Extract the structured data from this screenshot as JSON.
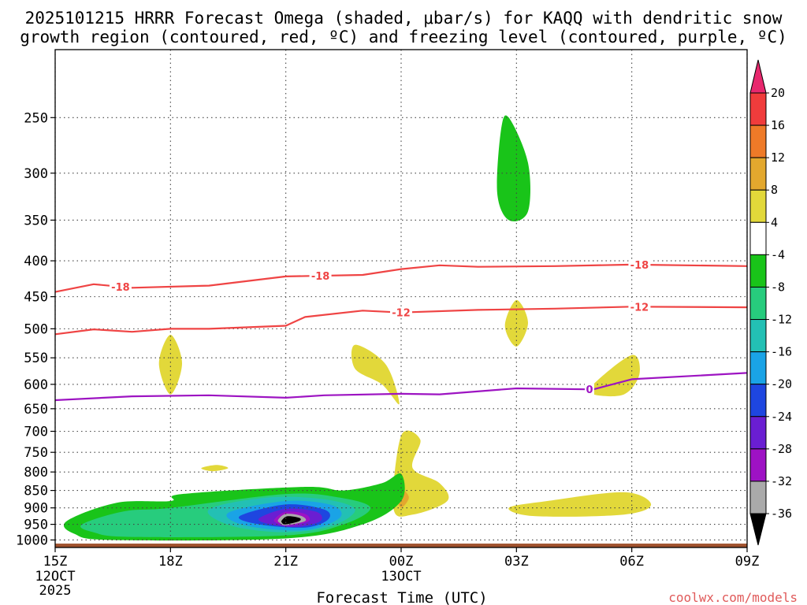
{
  "title_line1": "2025101215 HRRR Forecast Omega (shaded, μbar/s) for KAQQ with dendritic snow",
  "title_line2": "growth region (contoured, red, ºC) and freezing level (contoured, purple, ºC)",
  "credit": "coolwx.com/models",
  "chart_data": {
    "type": "cross-section",
    "title": "2025101215 HRRR Forecast Omega (shaded, μbar/s) for KAQQ with dendritic snow growth region (contoured, red, ºC) and freezing level (contoured, purple, ºC)",
    "xlabel": "Forecast Time (UTC)",
    "ylabel": "",
    "x_range_hours": [
      0,
      18
    ],
    "x_ticks": [
      {
        "hour": 0,
        "label": "15Z",
        "sub1": "12OCT",
        "sub2": "2025"
      },
      {
        "hour": 3,
        "label": "18Z",
        "sub1": "",
        "sub2": ""
      },
      {
        "hour": 6,
        "label": "21Z",
        "sub1": "",
        "sub2": ""
      },
      {
        "hour": 9,
        "label": "00Z",
        "sub1": "13OCT",
        "sub2": ""
      },
      {
        "hour": 12,
        "label": "03Z",
        "sub1": "",
        "sub2": ""
      },
      {
        "hour": 15,
        "label": "06Z",
        "sub1": "",
        "sub2": ""
      },
      {
        "hour": 18,
        "label": "09Z",
        "sub1": "",
        "sub2": ""
      }
    ],
    "y_ticks_hpa": [
      250,
      300,
      350,
      400,
      450,
      500,
      550,
      600,
      650,
      700,
      750,
      800,
      850,
      900,
      950,
      1000
    ],
    "y_range_hpa": [
      200,
      1025
    ],
    "ground_hpa": 1012,
    "colorbar": {
      "labels": [
        "20",
        "16",
        "12",
        "8",
        "4",
        "-4",
        "-8",
        "-12",
        "-16",
        "-20",
        "-24",
        "-28",
        "-32",
        "-36"
      ],
      "colors": [
        "#e8286e",
        "#f03c3c",
        "#ee7a28",
        "#e3a82e",
        "#e2d83a",
        "#ffffff",
        "#19c419",
        "#27cc7d",
        "#23c0b4",
        "#1aa3e6",
        "#1e46e0",
        "#6a1ed2",
        "#9e12c4",
        "#aaaaaa",
        "#000000"
      ]
    },
    "contours": [
      {
        "name": "dgz-minus18",
        "value": -18,
        "label": "-18",
        "color": "#ef4444",
        "points": [
          [
            0,
            443
          ],
          [
            1,
            432
          ],
          [
            2,
            437
          ],
          [
            4,
            434
          ],
          [
            6,
            421
          ],
          [
            8,
            419
          ],
          [
            9,
            411
          ],
          [
            10,
            406
          ],
          [
            11,
            408
          ],
          [
            13,
            407
          ],
          [
            15,
            405
          ],
          [
            18,
            407
          ]
        ],
        "label_hours": [
          1.7,
          6.9,
          15.2
        ]
      },
      {
        "name": "dgz-minus12",
        "value": -12,
        "label": "-12",
        "color": "#ef4444",
        "points": [
          [
            0,
            509
          ],
          [
            1,
            501
          ],
          [
            2,
            505
          ],
          [
            3,
            500
          ],
          [
            4,
            500
          ],
          [
            6,
            495
          ],
          [
            6.5,
            481
          ],
          [
            8,
            471
          ],
          [
            9,
            474
          ],
          [
            11,
            470
          ],
          [
            13,
            468
          ],
          [
            15,
            465
          ],
          [
            18,
            466
          ]
        ],
        "label_hours": [
          9.0,
          15.2
        ]
      },
      {
        "name": "freezing-level",
        "value": 0,
        "label": "0",
        "color": "#9d14c2",
        "points": [
          [
            0,
            632
          ],
          [
            2,
            624
          ],
          [
            4,
            622
          ],
          [
            6,
            627
          ],
          [
            7,
            622
          ],
          [
            9,
            619
          ],
          [
            10,
            620
          ],
          [
            12,
            608
          ],
          [
            14,
            610
          ],
          [
            15,
            590
          ],
          [
            18,
            578
          ]
        ],
        "label_hours": [
          13.9
        ]
      }
    ],
    "omega_blobs": [
      {
        "name": "yellow-18z-mid",
        "value": 4,
        "color": "#e2d83a",
        "points": [
          [
            3,
            510
          ],
          [
            3.3,
            560
          ],
          [
            3,
            620
          ],
          [
            2.7,
            560
          ]
        ]
      },
      {
        "name": "yellow-22z-mid",
        "value": 4,
        "color": "#e2d83a",
        "points": [
          [
            7.8,
            527
          ],
          [
            8.6,
            562
          ],
          [
            8.95,
            640
          ],
          [
            8.5,
            600
          ],
          [
            7.8,
            570
          ]
        ]
      },
      {
        "name": "yellow-03z-mid",
        "value": 4,
        "color": "#e2d83a",
        "points": [
          [
            12,
            455
          ],
          [
            12.3,
            490
          ],
          [
            12,
            530
          ],
          [
            11.7,
            495
          ]
        ]
      },
      {
        "name": "yellow-05z-mid",
        "value": 4,
        "color": "#e2d83a",
        "points": [
          [
            14,
            600
          ],
          [
            15,
            545
          ],
          [
            15.2,
            580
          ],
          [
            14.8,
            620
          ],
          [
            14,
            620
          ]
        ]
      },
      {
        "name": "yellow-19z-low",
        "value": 4,
        "color": "#e2d83a",
        "points": [
          [
            3.8,
            790
          ],
          [
            4.2,
            782
          ],
          [
            4.5,
            790
          ],
          [
            4.1,
            798
          ]
        ]
      },
      {
        "name": "yellow-00z-low",
        "value": 4,
        "color": "#e2d83a",
        "points": [
          [
            9.0,
            710
          ],
          [
            9.5,
            720
          ],
          [
            9.3,
            790
          ],
          [
            10.0,
            830
          ],
          [
            10.2,
            880
          ],
          [
            9.3,
            920
          ],
          [
            8.8,
            900
          ]
        ]
      },
      {
        "name": "orange-00z-low",
        "value": 8,
        "color": "#e3a82e",
        "points": [
          [
            9.0,
            845
          ],
          [
            9.2,
            870
          ],
          [
            9.0,
            900
          ],
          [
            8.9,
            870
          ]
        ]
      },
      {
        "name": "yellow-05z-low",
        "value": 4,
        "color": "#e2d83a",
        "points": [
          [
            11.8,
            900
          ],
          [
            12.8,
            880
          ],
          [
            14.8,
            855
          ],
          [
            15.5,
            890
          ],
          [
            14.8,
            920
          ],
          [
            12.5,
            925
          ]
        ]
      },
      {
        "name": "green-02z-upper",
        "value": -4,
        "color": "#19c419",
        "points": [
          [
            11.8,
            250
          ],
          [
            12.3,
            290
          ],
          [
            12.3,
            340
          ],
          [
            11.8,
            350
          ],
          [
            11.5,
            320
          ],
          [
            11.6,
            260
          ]
        ]
      },
      {
        "name": "low-level-omega-minus4",
        "value": -4,
        "color": "#19c419",
        "points": [
          [
            0.3,
            940
          ],
          [
            1.6,
            885
          ],
          [
            3.0,
            880
          ],
          [
            3.3,
            860
          ],
          [
            6.5,
            840
          ],
          [
            7.5,
            850
          ],
          [
            8.5,
            830
          ],
          [
            9.0,
            805
          ],
          [
            9.0,
            880
          ],
          [
            8.0,
            950
          ],
          [
            6.0,
            995
          ],
          [
            1.5,
            1000
          ],
          [
            0.5,
            980
          ]
        ]
      },
      {
        "name": "low-level-omega-minus8",
        "value": -8,
        "color": "#27cc7d",
        "points": [
          [
            0.7,
            950
          ],
          [
            1.8,
            910
          ],
          [
            3.0,
            900
          ],
          [
            6.0,
            860
          ],
          [
            7.4,
            870
          ],
          [
            8.2,
            900
          ],
          [
            7.5,
            950
          ],
          [
            6.0,
            985
          ],
          [
            2.0,
            990
          ],
          [
            1.0,
            975
          ]
        ]
      },
      {
        "name": "low-level-omega-minus12",
        "value": -12,
        "color": "#23c0b4",
        "points": [
          [
            4.0,
            905
          ],
          [
            5.5,
            870
          ],
          [
            7.0,
            875
          ],
          [
            7.8,
            905
          ],
          [
            7.2,
            955
          ],
          [
            6.0,
            975
          ],
          [
            4.6,
            955
          ]
        ]
      },
      {
        "name": "low-level-omega-minus16",
        "value": -16,
        "color": "#1aa3e6",
        "points": [
          [
            4.5,
            915
          ],
          [
            6.0,
            880
          ],
          [
            7.2,
            892
          ],
          [
            7.4,
            930
          ],
          [
            6.5,
            968
          ],
          [
            5.0,
            955
          ]
        ]
      },
      {
        "name": "low-level-omega-minus20",
        "value": -20,
        "color": "#1e46e0",
        "points": [
          [
            4.8,
            925
          ],
          [
            6.0,
            890
          ],
          [
            7.0,
            905
          ],
          [
            7.1,
            935
          ],
          [
            6.5,
            960
          ],
          [
            5.3,
            950
          ]
        ]
      },
      {
        "name": "low-level-omega-minus24",
        "value": -24,
        "color": "#6a1ed2",
        "points": [
          [
            5.3,
            932
          ],
          [
            6.0,
            903
          ],
          [
            6.8,
            912
          ],
          [
            6.9,
            940
          ],
          [
            6.3,
            958
          ],
          [
            5.6,
            950
          ]
        ]
      },
      {
        "name": "low-level-omega-minus28",
        "value": -28,
        "color": "#9e12c4",
        "points": [
          [
            5.7,
            935
          ],
          [
            6.0,
            912
          ],
          [
            6.5,
            918
          ],
          [
            6.6,
            940
          ],
          [
            6.1,
            955
          ],
          [
            5.8,
            948
          ]
        ]
      },
      {
        "name": "low-level-omega-minus32",
        "value": -32,
        "color": "#aaaaaa",
        "points": [
          [
            5.8,
            936
          ],
          [
            6.0,
            918
          ],
          [
            6.4,
            924
          ],
          [
            6.5,
            940
          ],
          [
            6.0,
            953
          ],
          [
            5.85,
            946
          ]
        ]
      },
      {
        "name": "low-level-omega-minus36",
        "value": -36,
        "color": "#000000",
        "points": [
          [
            5.9,
            937
          ],
          [
            6.05,
            925
          ],
          [
            6.35,
            930
          ],
          [
            6.35,
            940
          ],
          [
            6.0,
            950
          ],
          [
            5.9,
            945
          ]
        ]
      }
    ]
  }
}
